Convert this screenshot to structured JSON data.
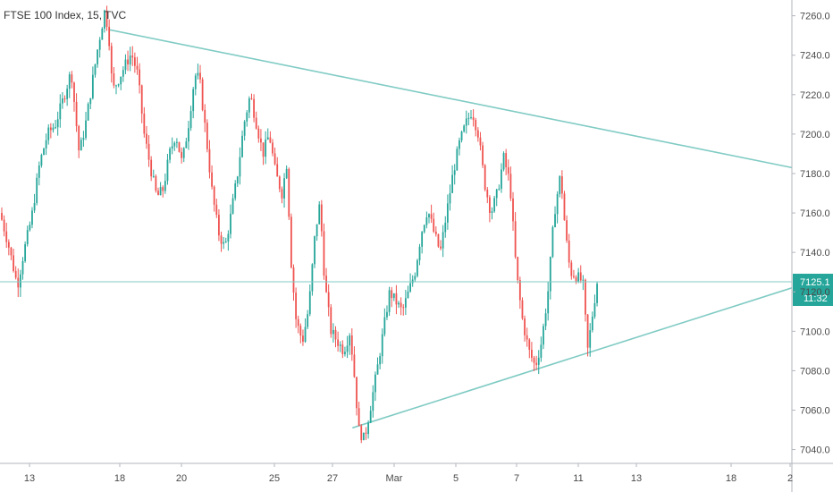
{
  "chart_data": {
    "type": "candlestick",
    "title": "FTSE 100 Index, 15, TVC",
    "y_ticks": [
      7040.0,
      7060.0,
      7080.0,
      7100.0,
      7120.0,
      7140.0,
      7160.0,
      7180.0,
      7200.0,
      7220.0,
      7240.0,
      7260.0
    ],
    "y_tick_labels": [
      "7040.0",
      "7060.0",
      "7080.0",
      "7100.0",
      "7120.0",
      "7140.0",
      "7160.0",
      "7180.0",
      "7200.0",
      "7220.0",
      "7240.0",
      "7260.0"
    ],
    "x_tick_labels": [
      "13",
      "18",
      "20",
      "25",
      "27",
      "Mar",
      "5",
      "7",
      "11",
      "13",
      "18",
      "2"
    ],
    "ylim": [
      7033,
      7268
    ],
    "price_line": {
      "value": 7125.1,
      "label": "7125.1"
    },
    "countdown_label": "11:32",
    "colors": {
      "up": "#26a69a",
      "down": "#ef5350",
      "trendline": "#80cbc4",
      "price_line": "#80cbc4",
      "price_label_bg": "#26a69a"
    },
    "trendlines": [
      {
        "name": "upper",
        "points": [
          [
            0.137,
            7253
          ],
          [
            1.0,
            7183
          ]
        ]
      },
      {
        "name": "lower",
        "points": [
          [
            0.445,
            7051
          ],
          [
            1.0,
            7122
          ]
        ]
      }
    ],
    "price_path": [
      [
        0.0,
        7160
      ],
      [
        0.01,
        7145
      ],
      [
        0.022,
        7123
      ],
      [
        0.03,
        7140
      ],
      [
        0.04,
        7158
      ],
      [
        0.05,
        7185
      ],
      [
        0.06,
        7200
      ],
      [
        0.07,
        7205
      ],
      [
        0.08,
        7218
      ],
      [
        0.09,
        7232
      ],
      [
        0.1,
        7190
      ],
      [
        0.108,
        7205
      ],
      [
        0.116,
        7225
      ],
      [
        0.124,
        7245
      ],
      [
        0.132,
        7262
      ],
      [
        0.137,
        7253
      ],
      [
        0.142,
        7222
      ],
      [
        0.15,
        7228
      ],
      [
        0.158,
        7235
      ],
      [
        0.166,
        7241
      ],
      [
        0.174,
        7230
      ],
      [
        0.182,
        7200
      ],
      [
        0.19,
        7183
      ],
      [
        0.198,
        7168
      ],
      [
        0.206,
        7172
      ],
      [
        0.214,
        7190
      ],
      [
        0.222,
        7200
      ],
      [
        0.23,
        7185
      ],
      [
        0.238,
        7205
      ],
      [
        0.246,
        7230
      ],
      [
        0.252,
        7228
      ],
      [
        0.26,
        7200
      ],
      [
        0.268,
        7170
      ],
      [
        0.276,
        7150
      ],
      [
        0.284,
        7142
      ],
      [
        0.292,
        7160
      ],
      [
        0.3,
        7180
      ],
      [
        0.308,
        7205
      ],
      [
        0.316,
        7220
      ],
      [
        0.324,
        7205
      ],
      [
        0.332,
        7190
      ],
      [
        0.34,
        7200
      ],
      [
        0.348,
        7180
      ],
      [
        0.356,
        7170
      ],
      [
        0.362,
        7185
      ],
      [
        0.368,
        7133
      ],
      [
        0.374,
        7105
      ],
      [
        0.382,
        7095
      ],
      [
        0.39,
        7112
      ],
      [
        0.398,
        7150
      ],
      [
        0.404,
        7165
      ],
      [
        0.41,
        7125
      ],
      [
        0.418,
        7100
      ],
      [
        0.426,
        7095
      ],
      [
        0.434,
        7090
      ],
      [
        0.442,
        7100
      ],
      [
        0.448,
        7075
      ],
      [
        0.453,
        7050
      ],
      [
        0.46,
        7045
      ],
      [
        0.468,
        7062
      ],
      [
        0.476,
        7080
      ],
      [
        0.484,
        7100
      ],
      [
        0.492,
        7120
      ],
      [
        0.5,
        7115
      ],
      [
        0.508,
        7110
      ],
      [
        0.516,
        7120
      ],
      [
        0.524,
        7130
      ],
      [
        0.532,
        7150
      ],
      [
        0.54,
        7162
      ],
      [
        0.548,
        7150
      ],
      [
        0.556,
        7140
      ],
      [
        0.564,
        7160
      ],
      [
        0.572,
        7180
      ],
      [
        0.58,
        7195
      ],
      [
        0.588,
        7205
      ],
      [
        0.596,
        7212
      ],
      [
        0.604,
        7200
      ],
      [
        0.612,
        7175
      ],
      [
        0.62,
        7160
      ],
      [
        0.628,
        7170
      ],
      [
        0.636,
        7188
      ],
      [
        0.644,
        7175
      ],
      [
        0.652,
        7130
      ],
      [
        0.66,
        7105
      ],
      [
        0.668,
        7090
      ],
      [
        0.676,
        7082
      ],
      [
        0.684,
        7095
      ],
      [
        0.692,
        7120
      ],
      [
        0.7,
        7160
      ],
      [
        0.708,
        7180
      ],
      [
        0.714,
        7150
      ],
      [
        0.72,
        7130
      ],
      [
        0.728,
        7128
      ],
      [
        0.736,
        7125
      ],
      [
        0.742,
        7090
      ],
      [
        0.748,
        7108
      ],
      [
        0.754,
        7125
      ]
    ]
  }
}
